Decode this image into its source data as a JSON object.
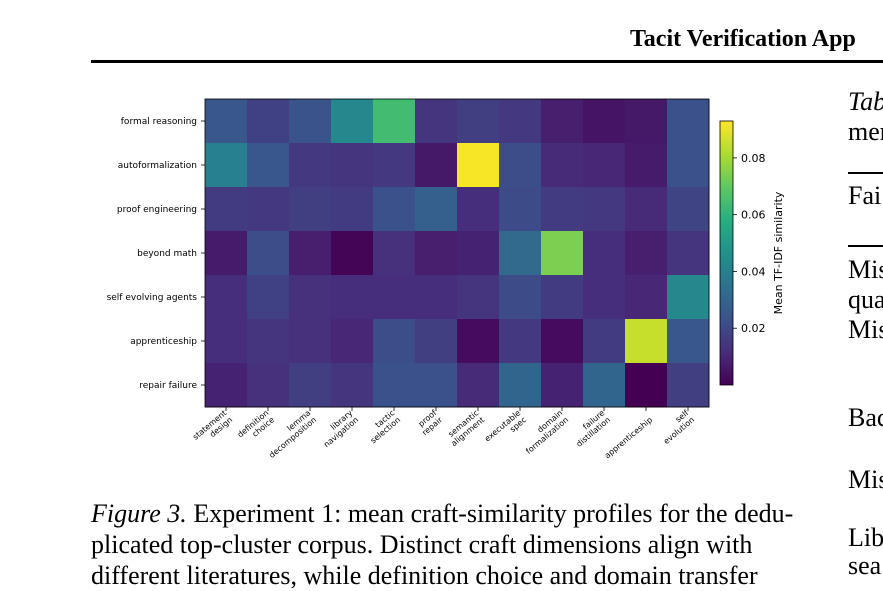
{
  "header": {
    "running_title": "Tacit Verification App"
  },
  "chart_data": {
    "type": "heatmap",
    "rows": [
      "formal reasoning",
      "autoformalization",
      "proof engineering",
      "beyond math",
      "self evolving agents",
      "apprenticeship",
      "repair failure"
    ],
    "columns": [
      "statement design",
      "definition choice",
      "lemma decomposition",
      "library navigation",
      "tactic selection",
      "proof repair",
      "semantic alignment",
      "executable spec",
      "domain formalization",
      "failure distillation",
      "apprenticeship",
      "self evolution"
    ],
    "values": [
      [
        0.025,
        0.018,
        0.024,
        0.043,
        0.064,
        0.014,
        0.017,
        0.015,
        0.008,
        0.005,
        0.006,
        0.023
      ],
      [
        0.04,
        0.025,
        0.015,
        0.014,
        0.015,
        0.006,
        0.092,
        0.022,
        0.011,
        0.01,
        0.007,
        0.023
      ],
      [
        0.016,
        0.015,
        0.017,
        0.016,
        0.023,
        0.028,
        0.012,
        0.021,
        0.016,
        0.015,
        0.011,
        0.019
      ],
      [
        0.007,
        0.022,
        0.008,
        0.001,
        0.013,
        0.008,
        0.009,
        0.032,
        0.074,
        0.012,
        0.008,
        0.014
      ],
      [
        0.012,
        0.018,
        0.013,
        0.012,
        0.012,
        0.012,
        0.014,
        0.021,
        0.016,
        0.012,
        0.01,
        0.043
      ],
      [
        0.012,
        0.014,
        0.013,
        0.01,
        0.022,
        0.017,
        0.003,
        0.015,
        0.003,
        0.016,
        0.085,
        0.025
      ],
      [
        0.009,
        0.013,
        0.017,
        0.014,
        0.023,
        0.023,
        0.011,
        0.03,
        0.009,
        0.03,
        0.0,
        0.017
      ]
    ],
    "colorbar": {
      "label": "Mean TF-IDF similarity",
      "ticks": [
        "0.02",
        "0.04",
        "0.06",
        "0.08"
      ],
      "range": [
        0.0,
        0.093
      ]
    },
    "colormap": "viridis"
  },
  "caption": {
    "label": "Figure 3.",
    "line1": "Experiment 1: mean craft-similarity profiles for the dedu-",
    "line2": "plicated top-cluster corpus. Distinct craft dimensions align with",
    "line3": "different literatures, while definition choice and domain transfer"
  },
  "right_column": {
    "table_caption_1": "Tab",
    "table_caption_2": "men",
    "header_cell": "Fai",
    "row_1": "Mis",
    "row_2": "qua",
    "row_3": "Mis",
    "row_4": "Bac",
    "row_5": "Mis",
    "row_6": "Lib",
    "row_7": "sea"
  }
}
